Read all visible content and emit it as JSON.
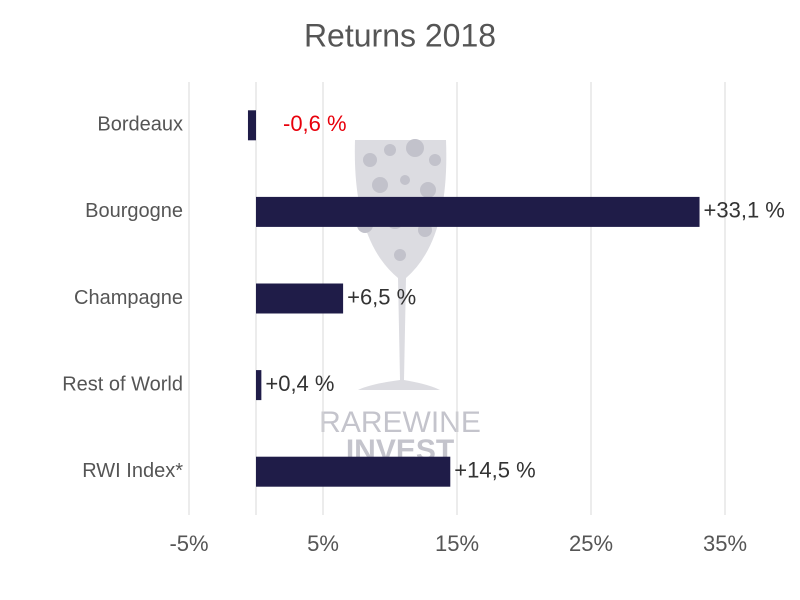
{
  "chart_data": {
    "type": "bar",
    "orientation": "horizontal",
    "title": "Returns 2018",
    "categories": [
      "Bordeaux",
      "Bourgogne",
      "Champagne",
      "Rest of World",
      "RWI Index*"
    ],
    "values": [
      -0.6,
      33.1,
      6.5,
      0.4,
      14.5
    ],
    "value_labels": [
      "-0,6 %",
      "+33,1 %",
      "+6,5 %",
      "+0,4 %",
      "+14,5 %"
    ],
    "color": "#1f1c48",
    "negative_label_color": "#e8000b",
    "xlim": [
      -5,
      35
    ],
    "xticks": [
      {
        "value": -5,
        "label": "-5%"
      },
      {
        "value": 5,
        "label": "5%"
      },
      {
        "value": 15,
        "label": "15%"
      },
      {
        "value": 25,
        "label": "25%"
      },
      {
        "value": 35,
        "label": "35%"
      }
    ],
    "grid": true,
    "watermark": [
      "RAREWINE",
      "INVEST"
    ]
  }
}
